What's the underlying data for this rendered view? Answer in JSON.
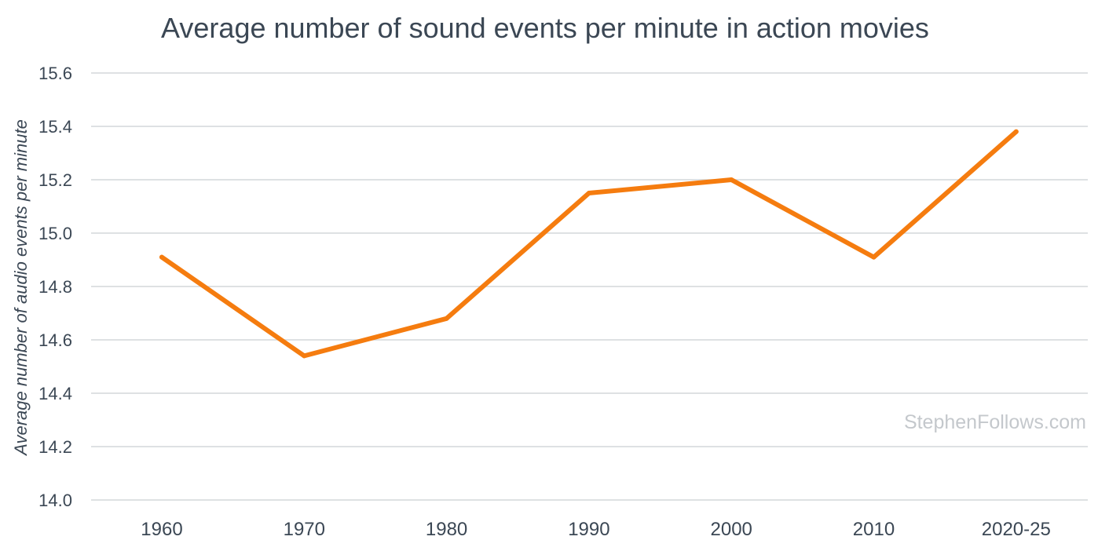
{
  "chart_data": {
    "type": "line",
    "title": "Average number of sound events per minute in action movies",
    "xlabel": "",
    "ylabel": "Average number of audio events per minute",
    "categories": [
      "1960",
      "1970",
      "1980",
      "1990",
      "2000",
      "2010",
      "2020-25"
    ],
    "series": [
      {
        "values": [
          14.91,
          14.54,
          14.68,
          15.15,
          15.2,
          14.91,
          15.38
        ],
        "color": "#f57c0f"
      }
    ],
    "ylim": [
      14.0,
      15.6
    ],
    "yticks": [
      "14.0",
      "14.2",
      "14.4",
      "14.6",
      "14.8",
      "15.0",
      "15.2",
      "15.4",
      "15.6"
    ],
    "grid": true,
    "legend": "none"
  },
  "watermark": "StephenFollows.com",
  "colors": {
    "text": "#3b4754",
    "grid": "#d4d7da",
    "watermark": "#c4c8cc"
  }
}
